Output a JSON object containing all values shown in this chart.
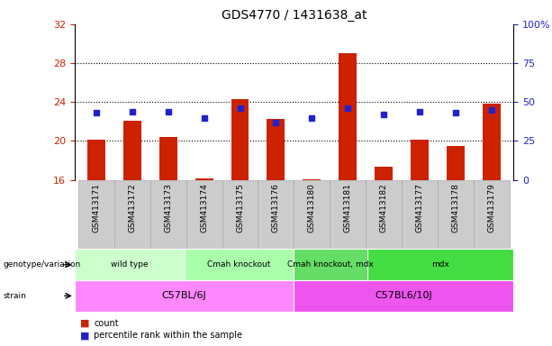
{
  "title": "GDS4770 / 1431638_at",
  "samples": [
    "GSM413171",
    "GSM413172",
    "GSM413173",
    "GSM413174",
    "GSM413175",
    "GSM413176",
    "GSM413180",
    "GSM413181",
    "GSM413182",
    "GSM413177",
    "GSM413178",
    "GSM413179"
  ],
  "counts": [
    20.1,
    22.1,
    20.4,
    16.2,
    24.3,
    22.3,
    16.1,
    29.0,
    17.4,
    20.1,
    19.5,
    23.8
  ],
  "percentiles": [
    43,
    44,
    44,
    40,
    46,
    37,
    40,
    46,
    42,
    44,
    43,
    45
  ],
  "bar_color": "#cc2200",
  "dot_color": "#2222cc",
  "ylim_left": [
    16,
    32
  ],
  "ylim_right": [
    0,
    100
  ],
  "yticks_left": [
    16,
    20,
    24,
    28,
    32
  ],
  "yticks_right": [
    0,
    25,
    50,
    75,
    100
  ],
  "base_value": 16,
  "genotype_groups": [
    {
      "label": "wild type",
      "start": 0,
      "end": 3,
      "color": "#ccffcc"
    },
    {
      "label": "Cmah knockout",
      "start": 3,
      "end": 6,
      "color": "#aaffaa"
    },
    {
      "label": "Cmah knockout, mdx",
      "start": 6,
      "end": 8,
      "color": "#66dd66"
    },
    {
      "label": "mdx",
      "start": 8,
      "end": 12,
      "color": "#44dd44"
    }
  ],
  "strain_groups": [
    {
      "label": "C57BL/6J",
      "start": 0,
      "end": 6,
      "color": "#ff88ff"
    },
    {
      "label": "C57BL6/10J",
      "start": 6,
      "end": 12,
      "color": "#ee55ee"
    }
  ],
  "legend_count_color": "#cc2200",
  "legend_dot_color": "#2222cc",
  "tick_color_left": "#cc2200",
  "tick_color_right": "#2222cc",
  "sample_label_bg": "#cccccc",
  "sample_label_border": "#aaaaaa"
}
